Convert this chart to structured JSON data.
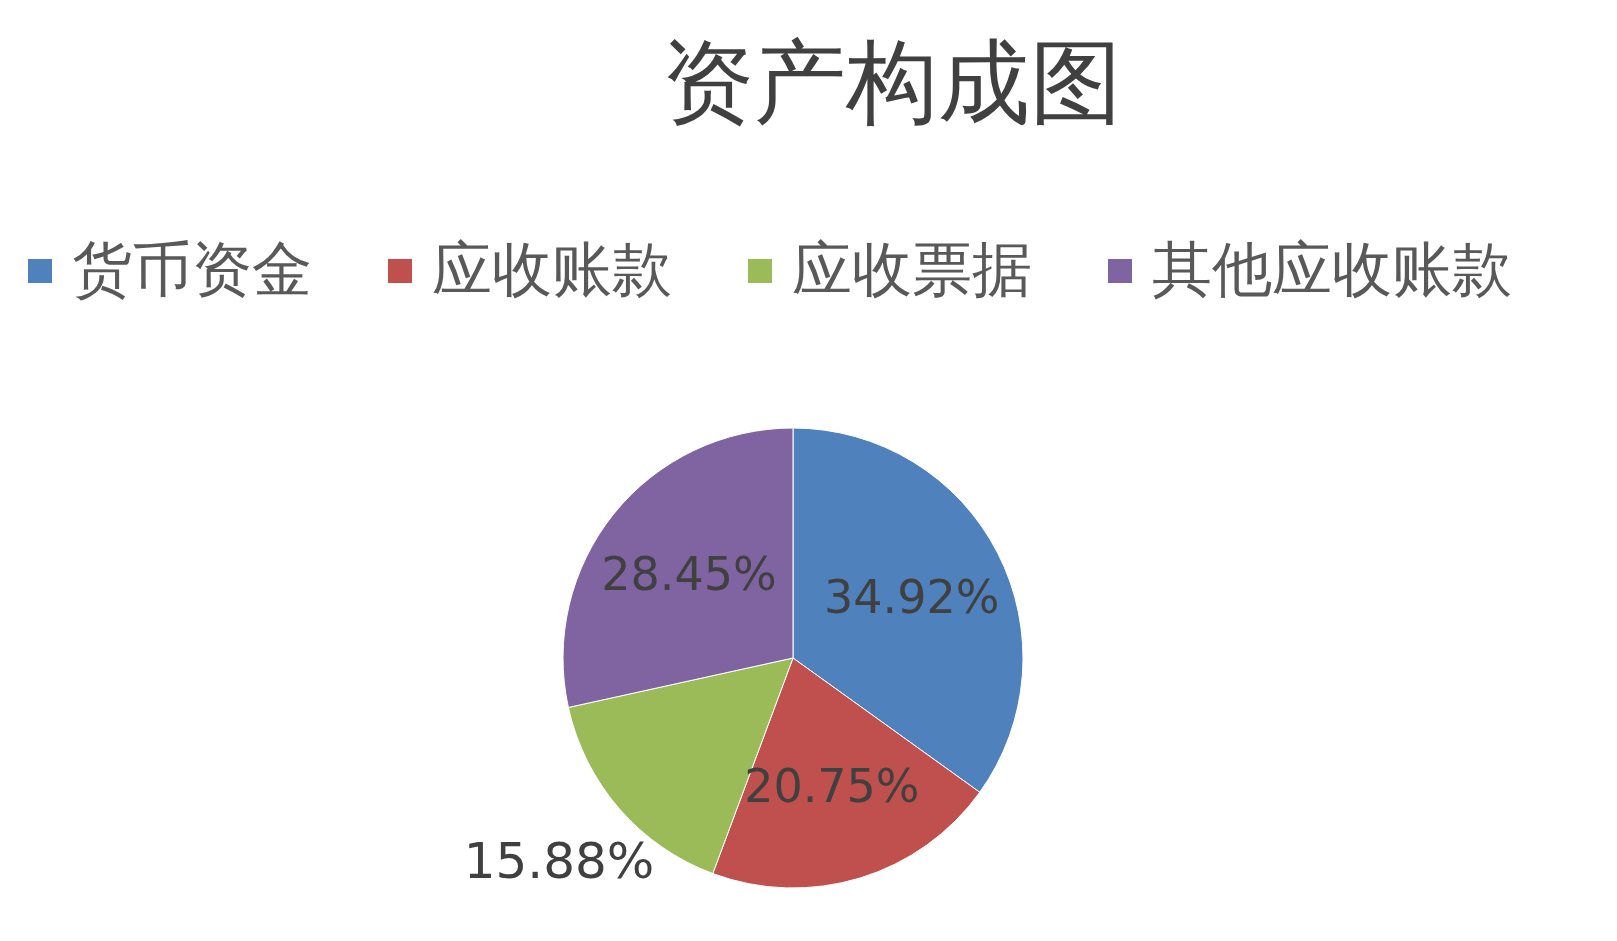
{
  "chart_data": {
    "type": "pie",
    "title": "资产构成图",
    "categories": [
      "货币资金",
      "应收账款",
      "应收票据",
      "其他应收账款"
    ],
    "values": [
      34.92,
      20.75,
      15.88,
      28.45
    ],
    "colors": [
      "#4f81bd",
      "#c0504d",
      "#9bbb59",
      "#8064a2"
    ],
    "value_labels": [
      "34.92%",
      "20.75%",
      "15.88%",
      "28.45%"
    ],
    "legend": "top"
  }
}
